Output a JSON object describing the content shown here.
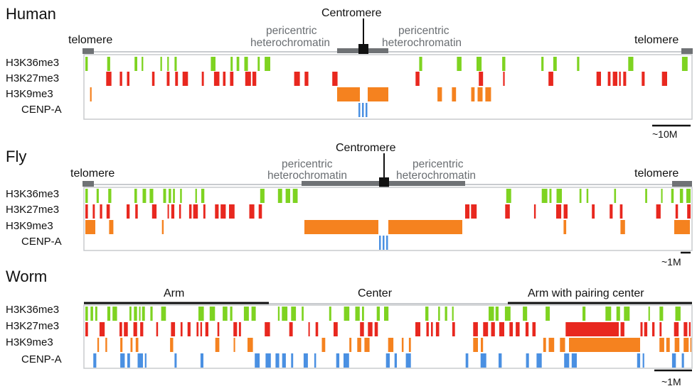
{
  "panels": [
    {
      "id": "human",
      "organism": "Human",
      "regions": {
        "telomere_left": "telomere",
        "telomere_right": "telomere",
        "centromere": "Centromere",
        "pericentric_line1": "pericentric",
        "pericentric_line2": "heterochromatin"
      },
      "scale_label": "~10M",
      "tracks": [
        {
          "name": "H3K36me3",
          "color": "#7ed321",
          "density": 0.38,
          "seed": 11
        },
        {
          "name": "H3K27me3",
          "color": "#e8281f",
          "density": 0.3,
          "seed": 23
        },
        {
          "name": "H3K9me3",
          "color": "#f5821f",
          "density": 0.06,
          "seed": 37
        },
        {
          "name": "CENP-A",
          "color": "#4a90e2",
          "density": 0.0,
          "seed": 41
        }
      ]
    },
    {
      "id": "fly",
      "organism": "Fly",
      "regions": {
        "telomere_left": "telomere",
        "telomere_right": "telomere",
        "centromere": "Centromere",
        "pericentric_line1": "pericentric",
        "pericentric_line2": "heterochromatin"
      },
      "scale_label": "~1M",
      "tracks": [
        {
          "name": "H3K36me3",
          "color": "#7ed321",
          "density": 0.45,
          "seed": 53
        },
        {
          "name": "H3K27me3",
          "color": "#e8281f",
          "density": 0.45,
          "seed": 67
        },
        {
          "name": "H3K9me3",
          "color": "#f5821f",
          "density": 0.08,
          "seed": 71
        },
        {
          "name": "CENP-A",
          "color": "#4a90e2",
          "density": 0.0,
          "seed": 83
        }
      ]
    },
    {
      "id": "worm",
      "organism": "Worm",
      "regions": {
        "arm": "Arm",
        "center": "Center",
        "arm_pairing": "Arm with pairing center"
      },
      "scale_label": "~1M",
      "tracks": [
        {
          "name": "H3K36me3",
          "color": "#7ed321",
          "density": 0.6,
          "seed": 97
        },
        {
          "name": "H3K27me3",
          "color": "#e8281f",
          "density": 0.5,
          "seed": 101
        },
        {
          "name": "H3K9me3",
          "color": "#f5821f",
          "density": 0.35,
          "seed": 113
        },
        {
          "name": "CENP-A",
          "color": "#4a90e2",
          "density": 0.4,
          "seed": 127
        }
      ]
    }
  ],
  "colors": {
    "gray_bar": "#6f7275",
    "axis": "#c8cbce",
    "black": "#111111"
  }
}
